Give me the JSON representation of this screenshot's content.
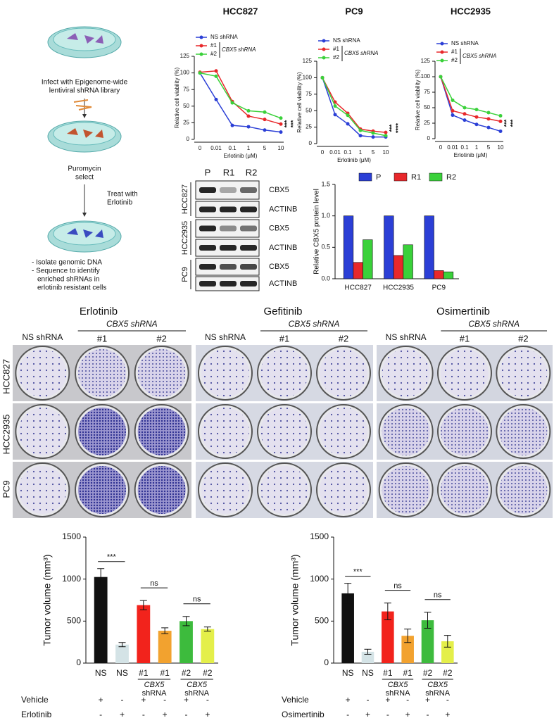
{
  "chart_data": [
    {
      "type": "line",
      "title": "HCC827",
      "x_label": "Erlotinib (μM)",
      "y_label": "Relative cell viability (%)",
      "categories": [
        "0",
        "0.01",
        "0.1",
        "1",
        "5",
        "10"
      ],
      "ylim": [
        0,
        125
      ],
      "yticks": [
        0,
        25,
        50,
        75,
        100,
        125
      ],
      "legend_group": "CBX5 shRNA",
      "annotations": [
        "***",
        "***"
      ],
      "series": [
        {
          "name": "NS shRNA",
          "color": "#2b3fd6",
          "values": [
            100,
            60,
            21,
            19,
            14,
            11
          ]
        },
        {
          "name": "#1",
          "color": "#e8282b",
          "values": [
            101,
            103,
            57,
            35,
            30,
            23
          ]
        },
        {
          "name": "#2",
          "color": "#3ad13a",
          "values": [
            100,
            95,
            55,
            43,
            41,
            32
          ]
        }
      ]
    },
    {
      "type": "line",
      "title": "PC9",
      "x_label": "Erlotinib (μM)",
      "y_label": "Relative cell viability (%)",
      "categories": [
        "0",
        "0.01",
        "0.1",
        "1",
        "5",
        "10"
      ],
      "ylim": [
        0,
        125
      ],
      "yticks": [
        0,
        25,
        50,
        75,
        100,
        125
      ],
      "legend_group": "CBX5 shRNA",
      "annotations": [
        "***",
        "****"
      ],
      "series": [
        {
          "name": "NS shRNA",
          "color": "#2b3fd6",
          "values": [
            100,
            44,
            30,
            12,
            10,
            10
          ]
        },
        {
          "name": "#1",
          "color": "#e8282b",
          "values": [
            100,
            63,
            46,
            22,
            19,
            17
          ]
        },
        {
          "name": "#2",
          "color": "#3ad13a",
          "values": [
            100,
            57,
            43,
            20,
            16,
            12
          ]
        }
      ]
    },
    {
      "type": "line",
      "title": "HCC2935",
      "x_label": "Erlotinib (μM)",
      "y_label": "Relative cell viability (%)",
      "categories": [
        "0",
        "0.01",
        "0.1",
        "1",
        "5",
        "10"
      ],
      "ylim": [
        0,
        125
      ],
      "yticks": [
        0,
        25,
        50,
        75,
        100,
        125
      ],
      "legend_group": "CBX5 shRNA",
      "annotations": [
        "***",
        "***"
      ],
      "series": [
        {
          "name": "NS shRNA",
          "color": "#2b3fd6",
          "values": [
            100,
            38,
            30,
            23,
            18,
            12
          ]
        },
        {
          "name": "#1",
          "color": "#e8282b",
          "values": [
            100,
            45,
            40,
            35,
            32,
            28
          ]
        },
        {
          "name": "#2",
          "color": "#3ad13a",
          "values": [
            100,
            62,
            50,
            47,
            42,
            37
          ]
        }
      ]
    },
    {
      "type": "bar",
      "y_label": "Relative CBX5 protein level",
      "categories": [
        "HCC827",
        "HCC2935",
        "PC9"
      ],
      "ylim": [
        0,
        1.5
      ],
      "yticks": [
        {
          "value": 0,
          "label": "0.0"
        },
        {
          "value": 0.5,
          "label": "0.5"
        },
        {
          "value": 1,
          "label": "1.0"
        },
        {
          "value": 1.5,
          "label": "1.5"
        }
      ],
      "series": [
        {
          "name": "P",
          "color": "#2b3fd6",
          "values": [
            1,
            1,
            1
          ]
        },
        {
          "name": "R1",
          "color": "#e8282b",
          "values": [
            0.26,
            0.37,
            0.13
          ]
        },
        {
          "name": "R2",
          "color": "#3ad13a",
          "values": [
            0.62,
            0.54,
            0.11
          ]
        }
      ]
    },
    {
      "type": "bar",
      "y_label": "Tumor volume (mm³)",
      "categories": [
        "NS",
        "NS",
        "#1",
        "#1",
        "#2",
        "#2"
      ],
      "values": [
        1025,
        220,
        690,
        385,
        500,
        405
      ],
      "errors": [
        100,
        25,
        55,
        35,
        55,
        25
      ],
      "colors": [
        "#111111",
        "#d4e3e6",
        "#f2231c",
        "#f2a22f",
        "#3dbb3d",
        "#e4ef4a"
      ],
      "ylim": [
        0,
        1500
      ],
      "yticks": [
        0,
        500,
        1000,
        1500
      ],
      "significance": [
        "***",
        "ns",
        "ns"
      ],
      "groups": [
        {
          "lines": [
            "CBX5",
            "shRNA"
          ]
        },
        {
          "lines": [
            "CBX5",
            "shRNA"
          ]
        }
      ],
      "treatments": [
        {
          "name": "Vehicle",
          "signs": [
            "+",
            "-",
            "+",
            "-",
            "+",
            "-"
          ]
        },
        {
          "name": "Erlotinib",
          "signs": [
            "-",
            "+",
            "-",
            "+",
            "-",
            "+"
          ]
        }
      ]
    },
    {
      "type": "bar",
      "y_label": "Tumor volume (mm³)",
      "categories": [
        "NS",
        "NS",
        "#1",
        "#1",
        "#2",
        "#2"
      ],
      "values": [
        830,
        135,
        615,
        325,
        510,
        260
      ],
      "errors": [
        120,
        30,
        100,
        80,
        95,
        70
      ],
      "colors": [
        "#111111",
        "#d4e3e6",
        "#f2231c",
        "#f2a22f",
        "#3dbb3d",
        "#e4ef4a"
      ],
      "ylim": [
        0,
        1500
      ],
      "yticks": [
        0,
        500,
        1000,
        1500
      ],
      "significance": [
        "***",
        "ns",
        "ns"
      ],
      "groups": [
        {
          "lines": [
            "CBX5",
            "shRNA"
          ]
        },
        {
          "lines": [
            "CBX5",
            "shRNA"
          ]
        }
      ],
      "treatments": [
        {
          "name": "Vehicle",
          "signs": [
            "+",
            "-",
            "+",
            "-",
            "+",
            "-"
          ]
        },
        {
          "name": "Osimertinib",
          "signs": [
            "-",
            "+",
            "-",
            "+",
            "-",
            "+"
          ]
        }
      ]
    }
  ],
  "schematic": {
    "infect": [
      "Infect with Epigenome-wide",
      "lentiviral shRNA library"
    ],
    "select": [
      "Puromycin",
      "select"
    ],
    "treat": [
      "Treat with",
      "Erlotinib"
    ],
    "isolate": [
      "- Isolate genomic DNA",
      "- Sequence to identify",
      "enriched shRNAs  in",
      "erlotinib resistant cells"
    ]
  },
  "blot": {
    "lanes": [
      "P",
      "R1",
      "R2"
    ],
    "cell_lines": [
      "HCC827",
      "HCC2935",
      "PC9"
    ],
    "proteins": [
      "CBX5",
      "ACTINB"
    ]
  },
  "plates": {
    "drugs": [
      "Erlotinib",
      "Gefitinib",
      "Osimertinib"
    ],
    "control": "NS shRNA",
    "group": "CBX5 shRNA",
    "clones": [
      "#1",
      "#2"
    ],
    "cell_lines": [
      "HCC827",
      "HCC2935",
      "PC9"
    ]
  }
}
